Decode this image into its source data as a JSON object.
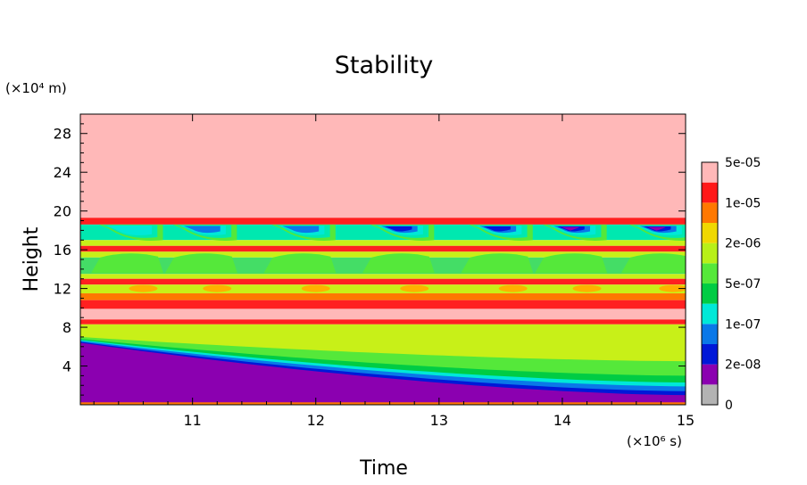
{
  "chart_data": {
    "type": "heatmap",
    "title": "Stability",
    "xlabel": "Time",
    "ylabel": "Height",
    "x_unit": "(×10⁶ s)",
    "y_unit": "(×10⁴ m)",
    "xlim": [
      10.09,
      15.0
    ],
    "ylim": [
      0,
      30
    ],
    "x_ticks": [
      11,
      12,
      13,
      14,
      15
    ],
    "y_ticks": [
      4,
      8,
      12,
      16,
      20,
      24,
      28
    ],
    "colorbar": {
      "labels": [
        "0",
        "2e-08",
        "1e-07",
        "5e-07",
        "2e-06",
        "1e-05",
        "5e-05"
      ],
      "colors": [
        "#b3b3b3",
        "#8b00b0",
        "#0018d8",
        "#0a78e8",
        "#00e8d8",
        "#00cc44",
        "#55e83a",
        "#b8f018",
        "#f0d800",
        "#ff7800",
        "#ff1818",
        "#ffb8b8"
      ]
    },
    "bands": [
      {
        "from": 19.3,
        "to": 30.0,
        "color": "#ffb8b8"
      },
      {
        "from": 18.6,
        "to": 19.3,
        "color": "#ff2020"
      },
      {
        "from": 17.0,
        "to": 18.6,
        "color": "#00e8b0"
      },
      {
        "from": 16.4,
        "to": 17.0,
        "color": "#c8f018"
      },
      {
        "from": 15.8,
        "to": 16.4,
        "color": "#ff2020"
      },
      {
        "from": 15.2,
        "to": 15.8,
        "color": "#c8f018"
      },
      {
        "from": 13.5,
        "to": 15.2,
        "color": "#44dd66"
      },
      {
        "from": 13.0,
        "to": 13.5,
        "color": "#c8f018"
      },
      {
        "from": 12.4,
        "to": 13.0,
        "color": "#ff2020"
      },
      {
        "from": 11.5,
        "to": 12.4,
        "color": "#c8f018"
      },
      {
        "from": 10.8,
        "to": 11.5,
        "color": "#ff7800"
      },
      {
        "from": 9.9,
        "to": 10.8,
        "color": "#ff2020"
      },
      {
        "from": 8.8,
        "to": 9.9,
        "color": "#ffb8b8"
      },
      {
        "from": 8.3,
        "to": 8.8,
        "color": "#ff2020"
      },
      {
        "from": 0.0,
        "to": 8.3,
        "color": "#c8f018"
      }
    ],
    "lower_layers": [
      {
        "color": "#55e83a",
        "top_start": 7.0,
        "top_end": 4.5
      },
      {
        "color": "#00cc44",
        "top_start": 6.8,
        "top_end": 3.0
      },
      {
        "color": "#00e8d8",
        "top_start": 6.7,
        "top_end": 2.3
      },
      {
        "color": "#0a78e8",
        "top_start": 6.6,
        "top_end": 1.9
      },
      {
        "color": "#0018d8",
        "top_start": 6.5,
        "top_end": 1.4
      },
      {
        "color": "#8b00b0",
        "top_start": 6.4,
        "top_end": 1.0
      }
    ],
    "bubble_centers": [
      10.5,
      11.1,
      11.9,
      12.7,
      13.5,
      14.1,
      14.8
    ],
    "bubble_core_colors": [
      "#55e83a",
      "#00e8d8",
      "#0a78e8",
      "#0018d8",
      "#8b00b0"
    ]
  }
}
